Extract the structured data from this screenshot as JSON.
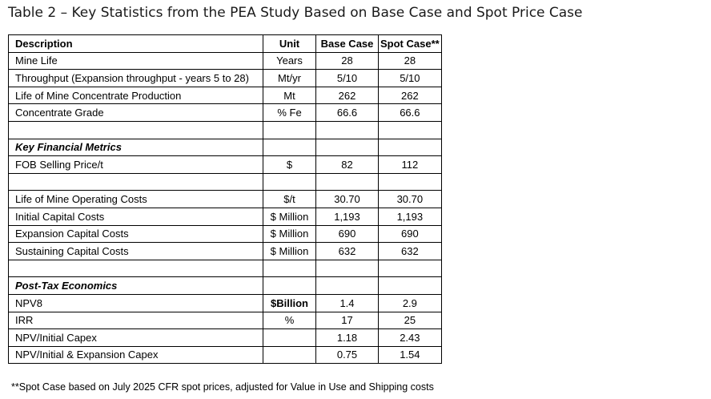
{
  "title": "Table 2 – Key Statistics from the PEA Study Based on Base Case and Spot Price Case",
  "headers": {
    "description": "Description",
    "unit": "Unit",
    "base": "Base Case",
    "spot": "Spot Case**"
  },
  "rows": [
    {
      "desc": "Mine Life",
      "unit": "Years",
      "base": "28",
      "spot": "28"
    },
    {
      "desc": "Throughput (Expansion throughput - years 5 to 28)",
      "unit": "Mt/yr",
      "base": "5/10",
      "spot": "5/10"
    },
    {
      "desc": "Life of Mine Concentrate Production",
      "unit": "Mt",
      "base": "262",
      "spot": "262"
    },
    {
      "desc": "Concentrate Grade",
      "unit": "% Fe",
      "base": "66.6",
      "spot": "66.6"
    },
    {
      "section": "Key Financial Metrics"
    },
    {
      "desc": "FOB Selling Price/t",
      "unit": "$",
      "base": "82",
      "spot": "112"
    },
    {
      "desc": "Life of Mine Operating Costs",
      "unit": "$/t",
      "base": "30.70",
      "spot": "30.70"
    },
    {
      "desc": "Initial Capital Costs",
      "unit": "$ Million",
      "base": "1,193",
      "spot": "1,193"
    },
    {
      "desc": "Expansion Capital Costs",
      "unit": "$ Million",
      "base": "690",
      "spot": "690"
    },
    {
      "desc": "Sustaining Capital Costs",
      "unit": "$ Million",
      "base": "632",
      "spot": "632"
    },
    {
      "section": "Post-Tax Economics"
    },
    {
      "desc": "NPV8",
      "unit": "$Billion",
      "base": "1.4",
      "spot": "2.9"
    },
    {
      "desc": "IRR",
      "unit": "%",
      "base": "17",
      "spot": "25"
    },
    {
      "desc": "NPV/Initial Capex",
      "unit": "",
      "base": "1.18",
      "spot": "2.43"
    },
    {
      "desc": "NPV/Initial & Expansion Capex",
      "unit": "",
      "base": "0.75",
      "spot": "1.54"
    }
  ],
  "footnote": "**Spot Case based on July 2025 CFR spot prices, adjusted for Value in Use and Shipping costs"
}
